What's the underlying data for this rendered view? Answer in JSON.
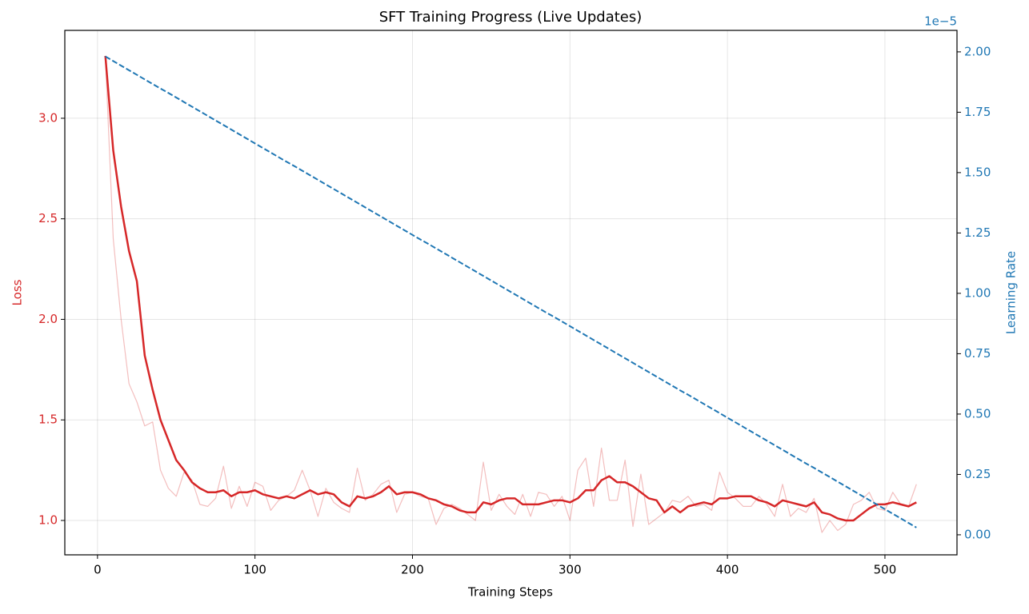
{
  "chart_data": {
    "type": "line",
    "title": "SFT Training Progress (Live Updates)",
    "x_label": "Training Steps",
    "y_label": "Loss",
    "y2_label": "Learning Rate",
    "y2_offset": "1e−5",
    "x": [
      5,
      10,
      15,
      20,
      25,
      30,
      35,
      40,
      45,
      50,
      55,
      60,
      65,
      70,
      75,
      80,
      85,
      90,
      95,
      100,
      105,
      110,
      115,
      120,
      125,
      130,
      135,
      140,
      145,
      150,
      155,
      160,
      165,
      170,
      175,
      180,
      185,
      190,
      195,
      200,
      205,
      210,
      215,
      220,
      225,
      230,
      235,
      240,
      245,
      250,
      255,
      260,
      265,
      270,
      275,
      280,
      285,
      290,
      295,
      300,
      305,
      310,
      315,
      320,
      325,
      330,
      335,
      340,
      345,
      350,
      355,
      360,
      365,
      370,
      375,
      380,
      385,
      390,
      395,
      400,
      405,
      410,
      415,
      420,
      425,
      430,
      435,
      440,
      445,
      450,
      455,
      460,
      465,
      470,
      475,
      480,
      485,
      490,
      495,
      500,
      505,
      510,
      515,
      520
    ],
    "series": [
      {
        "color": "#d62728",
        "opacity": 0.3,
        "width": 1.2,
        "values": [
          3.31,
          2.4,
          2.0,
          1.68,
          1.59,
          1.47,
          1.49,
          1.25,
          1.16,
          1.12,
          1.24,
          1.2,
          1.08,
          1.07,
          1.11,
          1.27,
          1.06,
          1.17,
          1.07,
          1.19,
          1.17,
          1.05,
          1.1,
          1.12,
          1.15,
          1.25,
          1.15,
          1.02,
          1.16,
          1.09,
          1.06,
          1.04,
          1.26,
          1.1,
          1.13,
          1.18,
          1.2,
          1.04,
          1.13,
          1.14,
          1.12,
          1.11,
          0.98,
          1.06,
          1.08,
          1.06,
          1.03,
          1.0,
          1.29,
          1.05,
          1.13,
          1.07,
          1.03,
          1.13,
          1.02,
          1.14,
          1.13,
          1.07,
          1.12,
          1.0,
          1.25,
          1.31,
          1.07,
          1.36,
          1.1,
          1.1,
          1.3,
          0.97,
          1.23,
          0.98,
          1.01,
          1.04,
          1.1,
          1.09,
          1.12,
          1.07,
          1.08,
          1.05,
          1.24,
          1.14,
          1.11,
          1.07,
          1.07,
          1.12,
          1.08,
          1.02,
          1.18,
          1.02,
          1.06,
          1.04,
          1.11,
          0.94,
          1.0,
          0.95,
          0.98,
          1.08,
          1.1,
          1.14,
          1.06,
          1.05,
          1.14,
          1.08,
          1.07,
          1.18
        ]
      },
      {
        "color": "#d62728",
        "opacity": 1,
        "width": 2.5,
        "values": [
          3.31,
          2.84,
          2.56,
          2.34,
          2.19,
          1.82,
          1.65,
          1.5,
          1.4,
          1.3,
          1.25,
          1.19,
          1.16,
          1.14,
          1.14,
          1.15,
          1.12,
          1.14,
          1.14,
          1.15,
          1.13,
          1.12,
          1.11,
          1.12,
          1.11,
          1.13,
          1.15,
          1.13,
          1.14,
          1.13,
          1.09,
          1.07,
          1.12,
          1.11,
          1.12,
          1.14,
          1.17,
          1.13,
          1.14,
          1.14,
          1.13,
          1.11,
          1.1,
          1.08,
          1.07,
          1.05,
          1.04,
          1.04,
          1.09,
          1.08,
          1.1,
          1.11,
          1.11,
          1.08,
          1.08,
          1.08,
          1.09,
          1.1,
          1.1,
          1.09,
          1.11,
          1.15,
          1.15,
          1.2,
          1.22,
          1.19,
          1.19,
          1.17,
          1.14,
          1.11,
          1.1,
          1.04,
          1.07,
          1.04,
          1.07,
          1.08,
          1.09,
          1.08,
          1.11,
          1.11,
          1.12,
          1.12,
          1.12,
          1.1,
          1.09,
          1.07,
          1.1,
          1.09,
          1.08,
          1.07,
          1.09,
          1.04,
          1.03,
          1.01,
          1.0,
          1.0,
          1.03,
          1.06,
          1.08,
          1.08,
          1.09,
          1.08,
          1.07,
          1.09
        ]
      },
      {
        "color": "#1f77b4",
        "axis": "y2",
        "dashed": true,
        "width": 2,
        "values": [
          1.981e-05,
          1.962e-05,
          1.943e-05,
          1.924e-05,
          1.905e-05,
          1.886e-05,
          1.867e-05,
          1.848e-05,
          1.83e-05,
          1.811e-05,
          1.792e-05,
          1.773e-05,
          1.754e-05,
          1.735e-05,
          1.716e-05,
          1.697e-05,
          1.678e-05,
          1.659e-05,
          1.64e-05,
          1.621e-05,
          1.602e-05,
          1.583e-05,
          1.564e-05,
          1.545e-05,
          1.527e-05,
          1.508e-05,
          1.489e-05,
          1.47e-05,
          1.451e-05,
          1.432e-05,
          1.413e-05,
          1.394e-05,
          1.375e-05,
          1.356e-05,
          1.337e-05,
          1.318e-05,
          1.299e-05,
          1.28e-05,
          1.261e-05,
          1.242e-05,
          1.223e-05,
          1.205e-05,
          1.186e-05,
          1.167e-05,
          1.148e-05,
          1.129e-05,
          1.11e-05,
          1.091e-05,
          1.072e-05,
          1.053e-05,
          1.034e-05,
          1.015e-05,
          9.96e-06,
          9.77e-06,
          9.58e-06,
          9.39e-06,
          9.2e-06,
          9.02e-06,
          8.83e-06,
          8.64e-06,
          8.45e-06,
          8.26e-06,
          8.07e-06,
          7.88e-06,
          7.69e-06,
          7.5e-06,
          7.31e-06,
          7.12e-06,
          6.93e-06,
          6.74e-06,
          6.55e-06,
          6.36e-06,
          6.17e-06,
          5.98e-06,
          5.8e-06,
          5.61e-06,
          5.42e-06,
          5.23e-06,
          5.04e-06,
          4.85e-06,
          4.66e-06,
          4.47e-06,
          4.28e-06,
          4.09e-06,
          3.9e-06,
          3.71e-06,
          3.52e-06,
          3.33e-06,
          3.14e-06,
          2.95e-06,
          2.77e-06,
          2.58e-06,
          2.39e-06,
          2.2e-06,
          2.01e-06,
          1.82e-06,
          1.63e-06,
          1.44e-06,
          1.25e-06,
          1.06e-06,
          8.7e-07,
          6.8e-07,
          4.9e-07,
          3e-07
        ]
      }
    ],
    "xlim": [
      -20.75,
      545.75
    ],
    "xticks": [
      0,
      100,
      200,
      300,
      400,
      500
    ],
    "ylim": [
      0.829,
      3.437
    ],
    "yticks": [
      {
        "value": 1,
        "label": "1.0"
      },
      1.5,
      {
        "value": 2,
        "label": "2.0"
      },
      2.5,
      {
        "value": 3,
        "label": "3.0"
      }
    ],
    "y_color": "#d62728",
    "y2lim": [
      -8.3e-07,
      2.089e-05
    ],
    "y2ticks": [
      {
        "value": 0,
        "label": "0.00"
      },
      {
        "value": 2.5e-06,
        "label": "0.25"
      },
      {
        "value": 5e-06,
        "label": "0.50"
      },
      {
        "value": 7.5e-06,
        "label": "0.75"
      },
      {
        "value": 1e-05,
        "label": "1.00"
      },
      {
        "value": 1.25e-05,
        "label": "1.25"
      },
      {
        "value": 1.5e-05,
        "label": "1.50"
      },
      {
        "value": 1.75e-05,
        "label": "1.75"
      },
      {
        "value": 2e-05,
        "label": "2.00"
      }
    ],
    "y2_color": "#1f77b4",
    "grid": true
  }
}
